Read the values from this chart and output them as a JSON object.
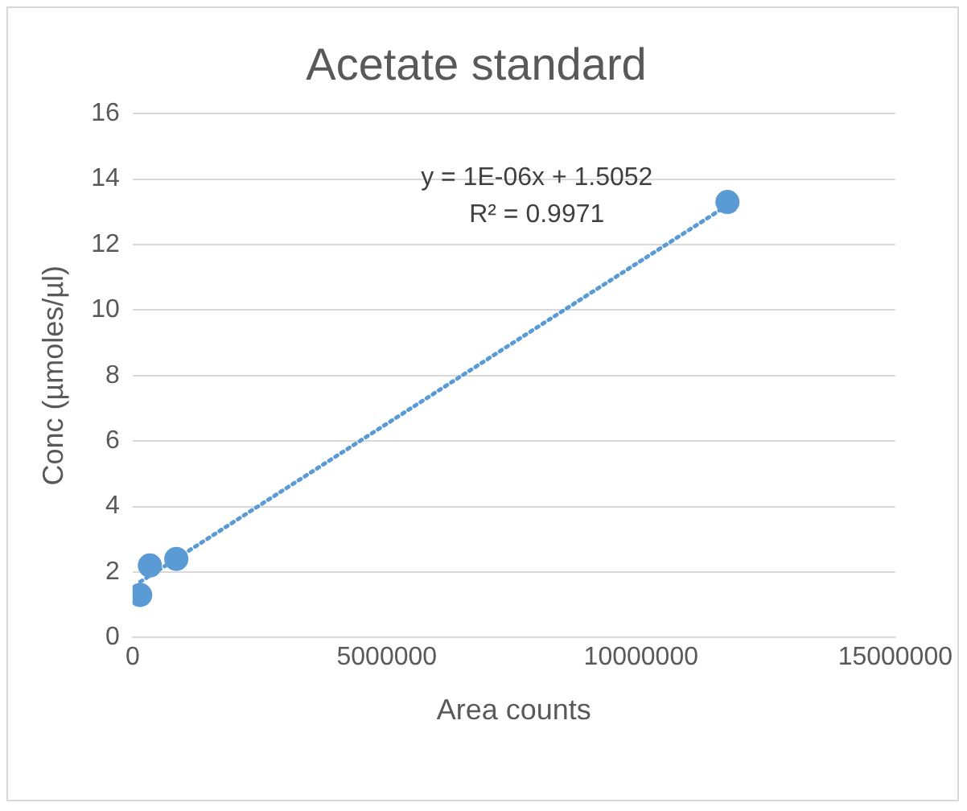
{
  "chart_data": {
    "type": "scatter",
    "title": "Acetate standard",
    "xlabel": "Area counts",
    "ylabel": "Conc (µmoles/µl)",
    "annotations": [
      "y = 1E-06x + 1.5052",
      "R² = 0.9971"
    ],
    "xlim": [
      0,
      15000000
    ],
    "xticks": [
      0,
      5000000,
      10000000,
      15000000
    ],
    "ylim": [
      0,
      16
    ],
    "yticks": [
      0,
      2,
      4,
      6,
      8,
      10,
      12,
      14,
      16
    ],
    "grid": "y",
    "legend": false,
    "marker": "circle",
    "series": [
      {
        "color": "#5b9bd5",
        "x": [
          150000,
          340000,
          860000,
          11700000
        ],
        "values": [
          1.3,
          2.2,
          2.4,
          13.3
        ]
      },
      {
        "type": "line",
        "color": "#5b9bd5",
        "line_style": "dotted",
        "marker": "none",
        "x": [
          150000,
          11700000
        ],
        "values": [
          1.7,
          13.2
        ]
      }
    ]
  }
}
